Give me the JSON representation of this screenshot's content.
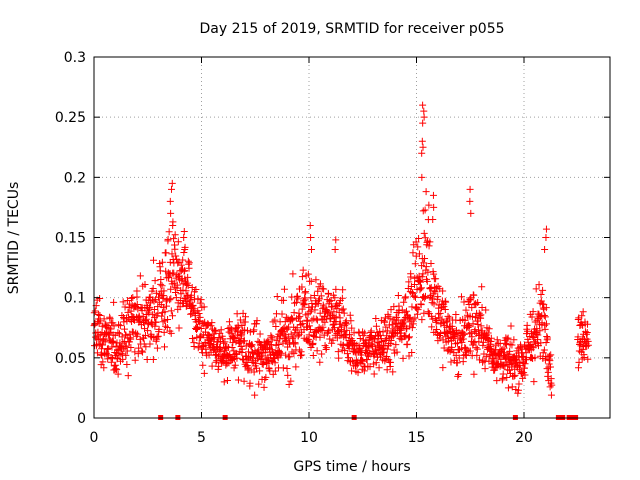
{
  "chart_data": {
    "type": "scatter",
    "title": "Day 215 of 2019, SRMTID for receiver p055",
    "xlabel": "GPS time / hours",
    "ylabel": "SRMTID / TECUs",
    "xlim": [
      0,
      24
    ],
    "ylim": [
      0,
      0.3
    ],
    "xticks": [
      0,
      5,
      10,
      15,
      20
    ],
    "xtick_labels": [
      "0",
      "5",
      "10",
      "15",
      "20"
    ],
    "yticks": [
      0,
      0.05,
      0.1,
      0.15,
      0.2,
      0.25,
      0.3
    ],
    "ytick_labels": [
      "0",
      "0.05",
      "0.1",
      "0.15",
      "0.2",
      "0.25",
      "0.3"
    ],
    "grid": true,
    "marker": "plus",
    "color": "#ff0000",
    "density_profile": [
      [
        0.0,
        0.075,
        0.025
      ],
      [
        0.5,
        0.065,
        0.02
      ],
      [
        1.0,
        0.06,
        0.02
      ],
      [
        1.5,
        0.07,
        0.02
      ],
      [
        2.0,
        0.085,
        0.02
      ],
      [
        2.5,
        0.08,
        0.02
      ],
      [
        3.0,
        0.09,
        0.025
      ],
      [
        3.5,
        0.11,
        0.03
      ],
      [
        4.0,
        0.115,
        0.025
      ],
      [
        4.5,
        0.1,
        0.02
      ],
      [
        5.0,
        0.07,
        0.02
      ],
      [
        5.5,
        0.06,
        0.015
      ],
      [
        6.0,
        0.055,
        0.015
      ],
      [
        6.5,
        0.06,
        0.02
      ],
      [
        7.0,
        0.06,
        0.02
      ],
      [
        7.5,
        0.055,
        0.02
      ],
      [
        8.0,
        0.05,
        0.015
      ],
      [
        8.5,
        0.06,
        0.02
      ],
      [
        9.0,
        0.07,
        0.025
      ],
      [
        9.5,
        0.08,
        0.025
      ],
      [
        10.0,
        0.085,
        0.03
      ],
      [
        10.5,
        0.08,
        0.025
      ],
      [
        11.0,
        0.08,
        0.02
      ],
      [
        11.5,
        0.075,
        0.02
      ],
      [
        12.0,
        0.055,
        0.015
      ],
      [
        12.5,
        0.055,
        0.015
      ],
      [
        13.0,
        0.06,
        0.015
      ],
      [
        13.5,
        0.06,
        0.015
      ],
      [
        14.0,
        0.07,
        0.02
      ],
      [
        14.5,
        0.085,
        0.02
      ],
      [
        15.0,
        0.11,
        0.03
      ],
      [
        15.5,
        0.13,
        0.04
      ],
      [
        16.0,
        0.09,
        0.025
      ],
      [
        16.5,
        0.07,
        0.02
      ],
      [
        17.0,
        0.06,
        0.02
      ],
      [
        17.5,
        0.08,
        0.025
      ],
      [
        18.0,
        0.075,
        0.02
      ],
      [
        18.5,
        0.055,
        0.015
      ],
      [
        19.0,
        0.05,
        0.015
      ],
      [
        19.5,
        0.045,
        0.015
      ],
      [
        20.0,
        0.05,
        0.015
      ],
      [
        20.5,
        0.07,
        0.025
      ],
      [
        21.0,
        0.08,
        0.025
      ],
      [
        21.5,
        0.0,
        0.0
      ],
      [
        22.5,
        0.065,
        0.015
      ],
      [
        23.0,
        0.07,
        0.015
      ]
    ],
    "peaks": [
      {
        "x": 3.6,
        "values": [
          0.195,
          0.19,
          0.18,
          0.17,
          0.16
        ]
      },
      {
        "x": 4.2,
        "values": [
          0.155,
          0.15,
          0.14
        ]
      },
      {
        "x": 10.1,
        "values": [
          0.16,
          0.15,
          0.14
        ]
      },
      {
        "x": 11.2,
        "values": [
          0.148,
          0.14
        ]
      },
      {
        "x": 15.3,
        "values": [
          0.26,
          0.255,
          0.25,
          0.245,
          0.23,
          0.225,
          0.22,
          0.2
        ]
      },
      {
        "x": 15.8,
        "values": [
          0.185,
          0.175,
          0.165
        ]
      },
      {
        "x": 17.5,
        "values": [
          0.19,
          0.18,
          0.17
        ]
      },
      {
        "x": 21.0,
        "values": [
          0.157,
          0.15,
          0.14
        ]
      }
    ],
    "zero_markers_x": [
      3.1,
      3.9,
      6.1,
      12.1,
      19.6,
      21.6,
      21.8,
      22.1,
      22.2,
      22.4
    ]
  }
}
